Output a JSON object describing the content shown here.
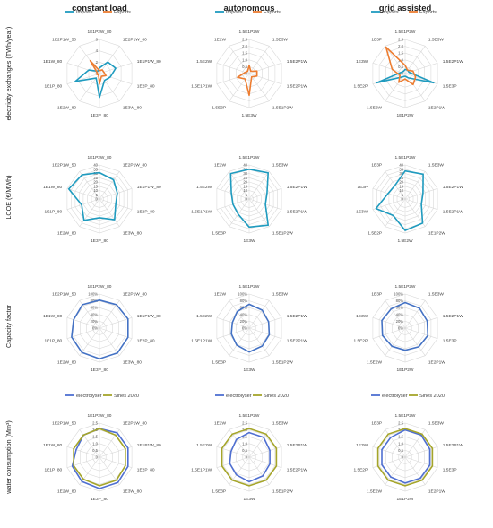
{
  "column_titles": [
    "constant load",
    "autonomous",
    "grid assisted"
  ],
  "row_labels": [
    "electricity exchanges (TWh/year)",
    "LCOE (€/MWh)",
    "Capacity factor",
    "water consumption (Mm³)"
  ],
  "colors": {
    "imports": "#1f9bbf",
    "exports": "#ed7d31",
    "lcoe": "#1f9bbf",
    "capacity": "#4472c4",
    "electrolyser": "#4f6fd1",
    "sines": "#a5a52a",
    "grid": "#d9d9d9"
  },
  "chart_data": [
    {
      "type": "radar",
      "row": 0,
      "col": 0,
      "categories": [
        "1E1P2W_80",
        "1E2P1W_80",
        "1E1P1W_80",
        "1E2P_80",
        "1E3W_80",
        "1E3P_80",
        "1E2W_80",
        "1E1P_80",
        "1E1W_80",
        "1E2P1W_50"
      ],
      "ticks": [
        "0",
        "2",
        "4",
        "6"
      ],
      "ylim": [
        0,
        6
      ],
      "legend": [
        "Imports",
        "Exports"
      ],
      "series": [
        {
          "name": "Imports",
          "values": [
            1.0,
            2.5,
            3.0,
            2.0,
            1.5,
            4.2,
            1.0,
            4.5,
            2.0,
            0.5
          ]
        },
        {
          "name": "Exports",
          "values": [
            0.5,
            0.8,
            0.8,
            1.2,
            0.6,
            1.8,
            0.3,
            0.5,
            0.4,
            2.8
          ]
        }
      ]
    },
    {
      "type": "radar",
      "row": 0,
      "col": 1,
      "categories": [
        "1.5E1P2W",
        "1.5E3W",
        "1.5E2P1W",
        "1.5E2P1W",
        "1.5E1P2W",
        "1.5E3W",
        "1.5E3P",
        "1.5E1P1W",
        "1.5E2W",
        "1E2W"
      ],
      "ticks": [
        "0",
        "0.5",
        "1.0",
        "1.5",
        "2.0",
        "2.5"
      ],
      "ylim": [
        0,
        2.5
      ],
      "legend": [
        "Imports",
        "Exports"
      ],
      "series": [
        {
          "name": "Imports",
          "values": [
            0,
            0,
            0,
            0,
            0,
            0,
            0,
            0,
            0,
            0
          ]
        },
        {
          "name": "Exports",
          "values": [
            0.6,
            0.2,
            0.6,
            0.6,
            0.3,
            1.6,
            0.5,
            0.9,
            0.3,
            0.2
          ]
        }
      ]
    },
    {
      "type": "radar",
      "row": 0,
      "col": 2,
      "categories": [
        "1.5E1P2W",
        "1.5E3W",
        "1.5E2P1W",
        "1.5E3P",
        "1E2P1W",
        "1E1P2W",
        "1.5E2W",
        "1.5E2P",
        "1E3W",
        "1E3P"
      ],
      "ticks": [
        "0",
        "0.5",
        "1.0",
        "1.5",
        "2.0",
        "2.5"
      ],
      "ylim": [
        0,
        2.5
      ],
      "legend": [
        "Imports",
        "Exports"
      ],
      "series": [
        {
          "name": "Imports",
          "values": [
            0.3,
            0.3,
            0.3,
            2.2,
            0.4,
            0.2,
            0.3,
            2.2,
            0.3,
            0.2
          ]
        },
        {
          "name": "Exports",
          "values": [
            0.6,
            0.3,
            0.6,
            0.8,
            1.0,
            0.4,
            0.8,
            0.4,
            1.0,
            2.4
          ]
        }
      ]
    },
    {
      "type": "radar",
      "row": 1,
      "col": 0,
      "categories": [
        "1E1P2W_80",
        "1E2P1W_80",
        "1E1P1W_80",
        "1E2P_80",
        "1E3W_80",
        "1E3P_80",
        "1E2W_80",
        "1E1P_80",
        "1E1W_80",
        "1E2P1W_50"
      ],
      "ticks": [
        "0",
        "5",
        "10",
        "15",
        "20",
        "25",
        "30",
        "35",
        "40"
      ],
      "ylim": [
        0,
        40
      ],
      "series": [
        {
          "name": "LCOE",
          "values": [
            31,
            28,
            22,
            20,
            30,
            22,
            31,
            22,
            38,
            35
          ]
        }
      ]
    },
    {
      "type": "radar",
      "row": 1,
      "col": 1,
      "categories": [
        "1.5E1P2W",
        "1.5E3W",
        "1.5E2P1W",
        "1.5E2P1W",
        "1.5E1P2W",
        "1E3W",
        "1.5E3P",
        "1.5E1P1W",
        "1.5E2W",
        "1E2W"
      ],
      "ticks": [
        "0",
        "5",
        "10",
        "15",
        "20",
        "25",
        "30",
        "35",
        "40"
      ],
      "ylim": [
        0,
        40
      ],
      "series": [
        {
          "name": "LCOE",
          "values": [
            35,
            38,
            22,
            20,
            38,
            33,
            22,
            20,
            22,
            37
          ]
        }
      ]
    },
    {
      "type": "radar",
      "row": 1,
      "col": 2,
      "categories": [
        "1.5E1P2W",
        "1.5E3W",
        "1.5E2P1W",
        "1.5E2P1W",
        "1E1P2W",
        "1.5E2W",
        "1.5E2P",
        "1E3W",
        "1E3P",
        "1E3P"
      ],
      "ticks": [
        "0",
        "5",
        "10",
        "15",
        "20",
        "25",
        "30",
        "35",
        "40"
      ],
      "ylim": [
        0,
        40
      ],
      "series": [
        {
          "name": "LCOE",
          "values": [
            33,
            36,
            22,
            20,
            35,
            37,
            24,
            36,
            21,
            20
          ]
        }
      ]
    },
    {
      "type": "radar",
      "row": 2,
      "col": 0,
      "categories": [
        "1E1P2W_80",
        "1E2P1W_80",
        "1E1P1W_80",
        "1E2P_80",
        "1E3W_80",
        "1E3P_80",
        "1E2W_80",
        "1E1P_80",
        "1E1W_80",
        "1E2P1W_50"
      ],
      "ticks": [
        "0%",
        "20%",
        "40%",
        "60%",
        "80%",
        "100%"
      ],
      "ylim": [
        0,
        100
      ],
      "series": [
        {
          "name": "Capacity factor",
          "values": [
            82,
            85,
            88,
            88,
            90,
            90,
            88,
            86,
            80,
            85
          ]
        }
      ]
    },
    {
      "type": "radar",
      "row": 2,
      "col": 1,
      "categories": [
        "1.5E1P2W",
        "1.5E3W",
        "1.5E2P1W",
        "1.5E2P1W",
        "1.5E1P2W",
        "1E3W",
        "1.5E3P",
        "1.5E1P1W",
        "1.5E2W",
        "1E2W"
      ],
      "ticks": [
        "0%",
        "20%",
        "40%",
        "60%",
        "80%",
        "100%"
      ],
      "ylim": [
        0,
        100
      ],
      "series": [
        {
          "name": "Capacity factor",
          "values": [
            70,
            65,
            60,
            62,
            65,
            70,
            62,
            55,
            52,
            60
          ]
        }
      ]
    },
    {
      "type": "radar",
      "row": 2,
      "col": 2,
      "categories": [
        "1.5E1P2W",
        "1.5E3W",
        "1.5E2P1W",
        "1.5E3P",
        "1E2P1W",
        "1E1P2W",
        "1.5E2W",
        "1.5E2P",
        "1E3W",
        "1E3P"
      ],
      "ticks": [
        "0%",
        "20%",
        "40%",
        "60%",
        "80%",
        "100%"
      ],
      "ylim": [
        0,
        100
      ],
      "series": [
        {
          "name": "Capacity factor",
          "values": [
            75,
            72,
            68,
            70,
            68,
            65,
            66,
            70,
            72,
            70
          ]
        }
      ]
    },
    {
      "type": "radar",
      "row": 3,
      "col": 0,
      "categories": [
        "1E1P2W_80",
        "1E2P1W_80",
        "1E1P1W_80",
        "1E2P_80",
        "1E3W_80",
        "1E3P_80",
        "1E2W_80",
        "1E1P_80",
        "1E1W_80",
        "1E2P1W_50"
      ],
      "ticks": [
        "0",
        "0.5",
        "1.0",
        "1.5",
        "2.0",
        "2.5"
      ],
      "ylim": [
        0,
        2.5
      ],
      "legend": [
        "electrolyser",
        "Sines 2020"
      ],
      "series": [
        {
          "name": "electrolyser",
          "values": [
            2.1,
            2.2,
            2.2,
            2.2,
            2.3,
            2.3,
            2.2,
            2.1,
            1.8,
            2.0
          ]
        },
        {
          "name": "Sines 2020",
          "values": [
            2.1,
            2.0,
            2.0,
            2.0,
            2.1,
            2.1,
            2.0,
            2.0,
            2.0,
            2.0
          ]
        }
      ]
    },
    {
      "type": "radar",
      "row": 3,
      "col": 1,
      "categories": [
        "1.5E1P2W",
        "1.5E3W",
        "1.5E2P1W",
        "1.5E2P1W",
        "1.5E1P2W",
        "1E3W",
        "1.5E3P",
        "1.5E1P1W",
        "1.5E2W",
        "1E2W"
      ],
      "ticks": [
        "0",
        "0.5",
        "1.0",
        "1.5",
        "2.0",
        "2.5"
      ],
      "ylim": [
        0,
        2.5
      ],
      "legend": [
        "electrolyser",
        "Sines 2020"
      ],
      "series": [
        {
          "name": "electrolyser",
          "values": [
            1.8,
            1.8,
            1.6,
            1.6,
            1.7,
            1.8,
            1.6,
            1.5,
            1.4,
            1.6
          ]
        },
        {
          "name": "Sines 2020",
          "values": [
            2.1,
            2.1,
            2.1,
            2.1,
            2.1,
            2.1,
            2.1,
            2.1,
            2.1,
            2.1
          ]
        }
      ]
    },
    {
      "type": "radar",
      "row": 3,
      "col": 2,
      "categories": [
        "1.5E1P2W",
        "1.5E3W",
        "1.5E2P1W",
        "1.5E3P",
        "1E2P1W",
        "1E1P2W",
        "1.5E2W",
        "1.5E2P",
        "1E3W",
        "1E3P"
      ],
      "ticks": [
        "0",
        "0.5",
        "1.0",
        "1.5",
        "2.0",
        "2.5"
      ],
      "ylim": [
        0,
        2.5
      ],
      "legend": [
        "electrolyser",
        "Sines 2020"
      ],
      "series": [
        {
          "name": "electrolyser",
          "values": [
            2.0,
            2.0,
            1.9,
            1.9,
            1.9,
            1.9,
            1.8,
            1.8,
            1.8,
            1.8
          ]
        },
        {
          "name": "Sines 2020",
          "values": [
            2.1,
            2.1,
            2.1,
            2.1,
            2.1,
            2.1,
            2.1,
            2.1,
            2.1,
            2.1
          ]
        }
      ]
    }
  ]
}
